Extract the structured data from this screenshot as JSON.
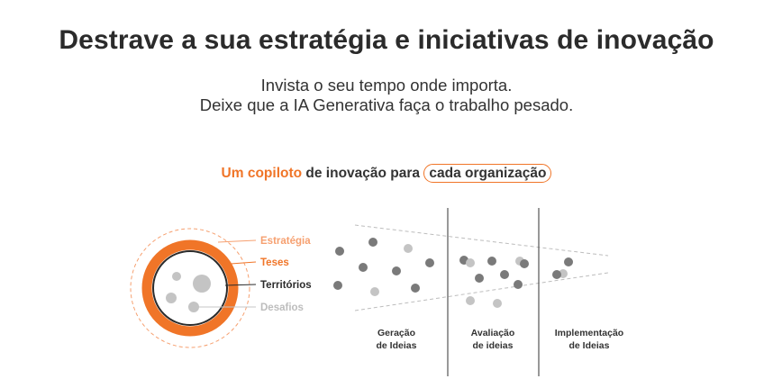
{
  "headline": "Destrave a sua estratégia e iniciativas de inovação",
  "subtitle": {
    "line1": "Invista o seu tempo onde importa.",
    "line2": "Deixe que a IA Generativa faça o trabalho pesado."
  },
  "tagline": {
    "accent": "Um copiloto",
    "middle": " de inovação para ",
    "boxed": "cada organização"
  },
  "layers": {
    "estrategia": "Estratégia",
    "teses": "Teses",
    "territorios": "Territórios",
    "desafios": "Desafios"
  },
  "stages": {
    "geracao": [
      "Geração",
      "de Ideias"
    ],
    "avaliacao": [
      "Avaliação",
      "de ideias"
    ],
    "implementacao": [
      "Implementação",
      "de Ideias"
    ]
  },
  "colors": {
    "accent": "#f07528",
    "dark_dot": "#7a7a7a",
    "light_dot": "#c4c4c4"
  }
}
